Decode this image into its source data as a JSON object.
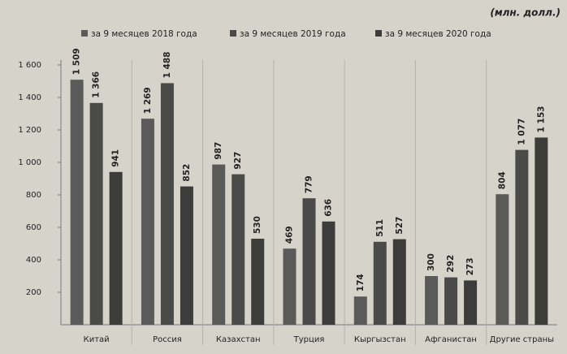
{
  "chart_data": {
    "type": "bar",
    "subtitle": "(млн. долл.)",
    "categories": [
      "Китай",
      "Россия",
      "Казахстан",
      "Турция",
      "Кыргызстан",
      "Афганистан",
      "Другие страны"
    ],
    "series": [
      {
        "name": "за 9 месяцев  2018 года",
        "color": "#5a5a58",
        "values": [
          1509,
          1269,
          987,
          469,
          174,
          300,
          804
        ],
        "value_labels": [
          "1 509",
          "1 269",
          "987",
          "469",
          "174",
          "300",
          "804"
        ]
      },
      {
        "name": "за 9 месяцев  2019 года",
        "color": "#4a4a48",
        "values": [
          1366,
          1488,
          927,
          779,
          511,
          292,
          1077
        ],
        "value_labels": [
          "1 366",
          "1 488",
          "927",
          "779",
          "511",
          "292",
          "1 077"
        ]
      },
      {
        "name": "за 9 месяцев  2020 года",
        "color": "#3c3c3a",
        "values": [
          941,
          852,
          530,
          636,
          527,
          273,
          1153
        ],
        "value_labels": [
          "941",
          "852",
          "530",
          "636",
          "527",
          "273",
          "1 153"
        ]
      }
    ],
    "ylim": [
      0,
      1600
    ],
    "yticks": [
      200,
      400,
      600,
      800,
      {
        "value": 1000,
        "label": "1 000"
      },
      {
        "value": 1200,
        "label": "1 200"
      },
      {
        "value": 1400,
        "label": "1 400"
      },
      {
        "value": 1600,
        "label": "1 600"
      }
    ],
    "grid": false
  }
}
